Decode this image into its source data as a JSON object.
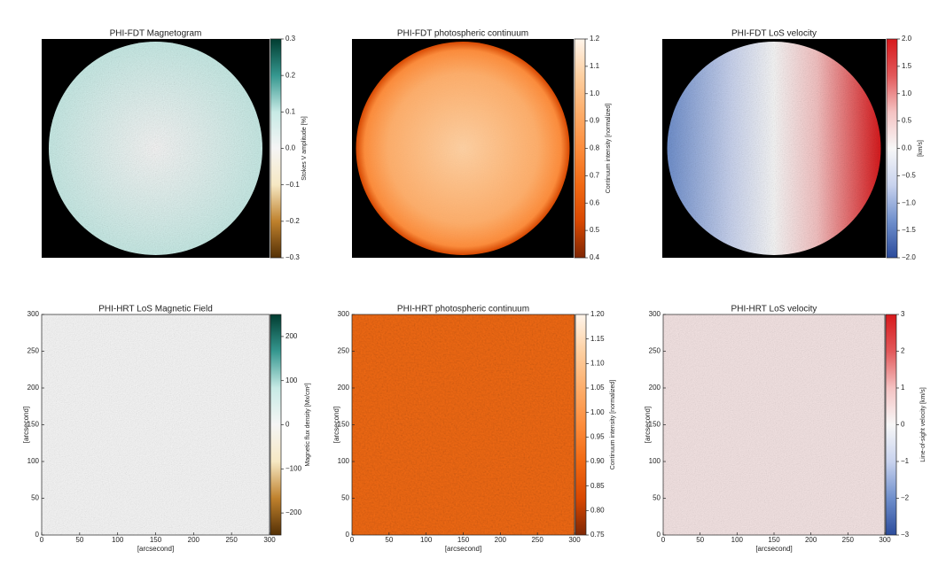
{
  "chart_data": [
    {
      "type": "image",
      "title": "PHI-FDT Magnetogram",
      "colorbar_label": "Stokes V amplitude [%]",
      "disk": true,
      "cmap": [
        "#543005",
        "#bf812d",
        "#f6e8c3",
        "#f5f5f5",
        "#c7eae5",
        "#35978f",
        "#003c30"
      ],
      "clim": [
        -0.3,
        0.3
      ],
      "cticks": [
        {
          "value": -0.3,
          "label": "−0.3"
        },
        {
          "value": -0.2,
          "label": "−0.2"
        },
        {
          "value": -0.1,
          "label": "−0.1"
        },
        {
          "value": 0,
          "label": "0.0"
        },
        0.1,
        0.2,
        0.3
      ]
    },
    {
      "type": "image",
      "title": "PHI-FDT photospheric continuum",
      "colorbar_label": "Continuum intensity [normalized]",
      "disk": true,
      "cmap": [
        "#7f2704",
        "#d94801",
        "#f16913",
        "#fd8d3c",
        "#fdae6b",
        "#fdd0a2",
        "#fff5eb"
      ],
      "clim": [
        0.4,
        1.2
      ],
      "cticks": [
        0.4,
        0.5,
        0.6,
        0.7,
        0.8,
        0.9,
        {
          "value": 1,
          "label": "1.0"
        },
        1.1,
        1.2
      ]
    },
    {
      "type": "image",
      "title": "PHI-FDT LoS velocity",
      "colorbar_label": "[km/s]",
      "disk": true,
      "cmap": [
        "#2c4c9c",
        "#6f8fcc",
        "#c9d3ee",
        "#f7f7f7",
        "#f4c2c2",
        "#e2585a",
        "#d7191c"
      ],
      "clim": [
        -2,
        2
      ],
      "cticks": [
        {
          "value": -2,
          "label": "−2.0"
        },
        {
          "value": -1.5,
          "label": "−1.5"
        },
        {
          "value": -1,
          "label": "−1.0"
        },
        {
          "value": -0.5,
          "label": "−0.5"
        },
        {
          "value": 0,
          "label": "0.0"
        },
        0.5,
        {
          "value": 1,
          "label": "1.0"
        },
        1.5,
        {
          "value": 2,
          "label": "2.0"
        }
      ]
    },
    {
      "type": "image",
      "title": "PHI-HRT LoS Magnetic Field",
      "colorbar_label": "Magnetic flux density [Mx/cm²]",
      "disk": false,
      "cmap": [
        "#543005",
        "#bf812d",
        "#f6e8c3",
        "#f5f5f5",
        "#c7eae5",
        "#35978f",
        "#003c30"
      ],
      "clim": [
        -250,
        250
      ],
      "cticks": [
        {
          "value": -200,
          "label": "−200"
        },
        {
          "value": -100,
          "label": "−100"
        },
        0,
        100,
        200
      ],
      "xlabel": "[arcsecond]",
      "ylabel": "[arcsecond]",
      "xlim": [
        0,
        300
      ],
      "ylim": [
        0,
        300
      ],
      "xticks": [
        0,
        50,
        100,
        150,
        200,
        250,
        300
      ],
      "yticks": [
        0,
        50,
        100,
        150,
        200,
        250,
        300
      ]
    },
    {
      "type": "image",
      "title": "PHI-HRT photospheric continuum",
      "colorbar_label": "Continuum intensity [normalized]",
      "disk": false,
      "cmap": [
        "#7f2704",
        "#d94801",
        "#f16913",
        "#fd8d3c",
        "#fdae6b",
        "#fdd0a2",
        "#fff5eb"
      ],
      "clim": [
        0.75,
        1.2
      ],
      "cticks": [
        0.75,
        {
          "value": 0.8,
          "label": "0.80"
        },
        0.85,
        {
          "value": 0.9,
          "label": "0.90"
        },
        0.95,
        {
          "value": 1,
          "label": "1.00"
        },
        1.05,
        {
          "value": 1.1,
          "label": "1.10"
        },
        1.15,
        {
          "value": 1.2,
          "label": "1.20"
        }
      ],
      "xlabel": "[arcsecond]",
      "ylabel": "[arcsecond]",
      "xlim": [
        0,
        300
      ],
      "ylim": [
        0,
        300
      ],
      "xticks": [
        0,
        50,
        100,
        150,
        200,
        250,
        300
      ],
      "yticks": [
        0,
        50,
        100,
        150,
        200,
        250,
        300
      ]
    },
    {
      "type": "image",
      "title": "PHI-HRT LoS velocity",
      "colorbar_label": "Line-of-sight velocity [km/s]",
      "disk": false,
      "cmap": [
        "#2c4c9c",
        "#6f8fcc",
        "#c9d3ee",
        "#f7f7f7",
        "#f4c2c2",
        "#e2585a",
        "#d7191c"
      ],
      "clim": [
        -3,
        3
      ],
      "cticks": [
        {
          "value": -3,
          "label": "−3"
        },
        {
          "value": -2,
          "label": "−2"
        },
        {
          "value": -1,
          "label": "−1"
        },
        0,
        1,
        2,
        3
      ],
      "xlabel": "[arcsecond]",
      "ylabel": "[arcsecond]",
      "xlim": [
        0,
        300
      ],
      "ylim": [
        0,
        300
      ],
      "xticks": [
        0,
        50,
        100,
        150,
        200,
        250,
        300
      ],
      "yticks": [
        0,
        50,
        100,
        150,
        200,
        250,
        300
      ]
    }
  ]
}
